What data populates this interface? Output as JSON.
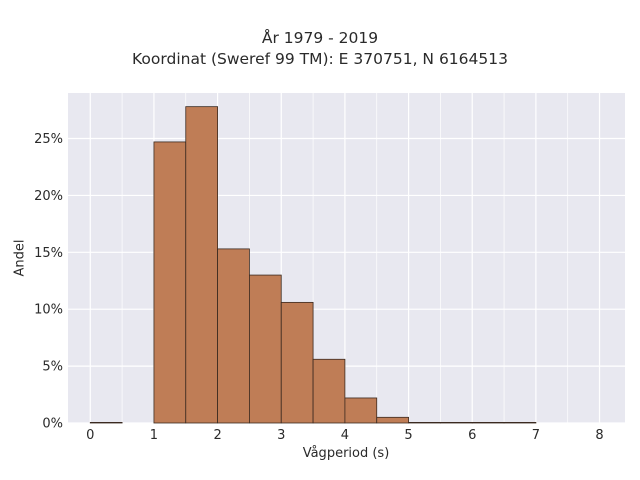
{
  "chart_data": {
    "type": "bar",
    "title": "År 1979 - 2019",
    "subtitle": "Koordinat (Sweref 99 TM): E 370751, N 6164513",
    "xlabel": "Vågperiod (s)",
    "ylabel": "Andel",
    "xlim": [
      -0.35,
      8.4
    ],
    "ylim": [
      0,
      29
    ],
    "x_ticks": [
      0,
      1,
      2,
      3,
      4,
      5,
      6,
      7,
      8
    ],
    "x_tick_labels": [
      "0",
      "1",
      "2",
      "3",
      "4",
      "5",
      "6",
      "7",
      "8"
    ],
    "y_ticks": [
      0,
      5,
      10,
      15,
      20,
      25
    ],
    "y_tick_labels": [
      "0%",
      "5%",
      "10%",
      "15%",
      "20%",
      "25%"
    ],
    "grid": true,
    "bin_width": 0.5,
    "bins": [
      {
        "start": 0.0,
        "end": 0.5,
        "value": 0.05
      },
      {
        "start": 0.5,
        "end": 1.0,
        "value": 0.0
      },
      {
        "start": 1.0,
        "end": 1.5,
        "value": 24.7
      },
      {
        "start": 1.5,
        "end": 2.0,
        "value": 27.8
      },
      {
        "start": 2.0,
        "end": 2.5,
        "value": 15.3
      },
      {
        "start": 2.5,
        "end": 3.0,
        "value": 13.0
      },
      {
        "start": 3.0,
        "end": 3.5,
        "value": 10.6
      },
      {
        "start": 3.5,
        "end": 4.0,
        "value": 5.6
      },
      {
        "start": 4.0,
        "end": 4.5,
        "value": 2.2
      },
      {
        "start": 4.5,
        "end": 5.0,
        "value": 0.5
      },
      {
        "start": 5.0,
        "end": 5.5,
        "value": 0.05
      },
      {
        "start": 5.5,
        "end": 6.0,
        "value": 0.03
      },
      {
        "start": 6.0,
        "end": 6.5,
        "value": 0.03
      },
      {
        "start": 6.5,
        "end": 7.0,
        "value": 0.02
      }
    ],
    "colors": {
      "bar_fill": "#bf7d56",
      "bar_edge": "#3b2a20",
      "plot_bg": "#e8e8f0",
      "grid": "#ffffff"
    }
  }
}
